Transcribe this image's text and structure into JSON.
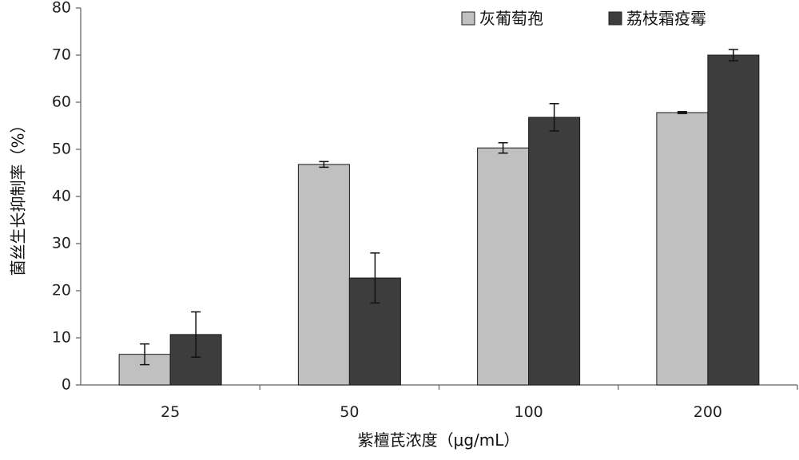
{
  "chart_data": {
    "type": "bar",
    "title": "",
    "xlabel": "紫檀芪浓度（μg/mL）",
    "ylabel": "菌丝生长抑制率（%）",
    "categories": [
      "25",
      "50",
      "100",
      "200"
    ],
    "ylim": [
      0,
      80
    ],
    "yticks": [
      "0",
      "10",
      "20",
      "30",
      "40",
      "50",
      "60",
      "70",
      "80"
    ],
    "grid": false,
    "legend_position": "top-right",
    "series": [
      {
        "name": "灰葡萄孢",
        "color": "#c0c0c0",
        "values": [
          6.5,
          46.8,
          50.3,
          57.8
        ],
        "errors": [
          2.2,
          0.6,
          1.1,
          0.2
        ]
      },
      {
        "name": "荔枝霜疫霉",
        "color": "#3d3d3d",
        "values": [
          10.7,
          22.7,
          56.8,
          70.0
        ],
        "errors": [
          4.8,
          5.3,
          2.9,
          1.2
        ]
      }
    ]
  }
}
